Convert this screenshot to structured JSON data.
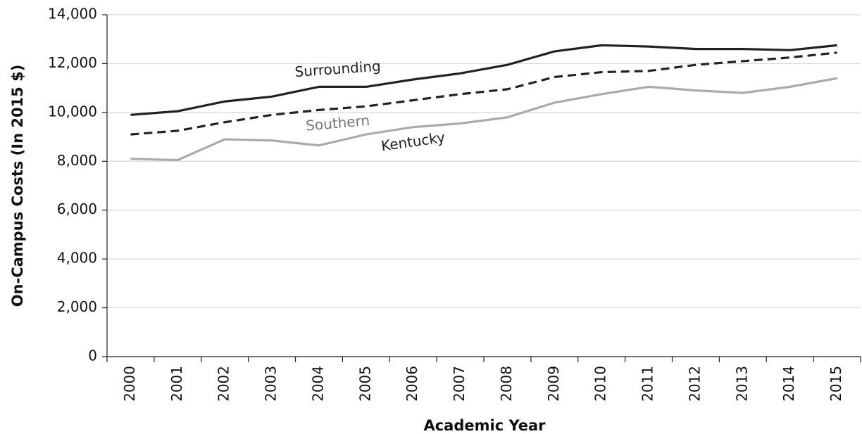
{
  "chart_data": {
    "type": "line",
    "x_label": "Academic Year",
    "y_label": "On-Campus Costs (In 2015 $)",
    "categories": [
      "2000",
      "2001",
      "2002",
      "2003",
      "2004",
      "2005",
      "2006",
      "2007",
      "2008",
      "2009",
      "2010",
      "2011",
      "2012",
      "2013",
      "2014",
      "2015"
    ],
    "series": [
      {
        "name": "Surrounding",
        "color": "#222222",
        "label_color": "#222222",
        "dash": false,
        "values": [
          9900,
          10050,
          10450,
          10650,
          11050,
          11050,
          11350,
          11600,
          11950,
          12500,
          12750,
          12700,
          12600,
          12600,
          12550,
          12750
        ]
      },
      {
        "name": "Southern",
        "color": "#222222",
        "label_color": "#777777",
        "dash": true,
        "values": [
          9100,
          9250,
          9600,
          9900,
          10100,
          10250,
          10500,
          10750,
          10950,
          11450,
          11650,
          11700,
          11950,
          12100,
          12250,
          12450
        ]
      },
      {
        "name": "Kentucky",
        "color": "#aaaaaa",
        "label_color": "#222222",
        "dash": false,
        "values": [
          8100,
          8050,
          8900,
          8850,
          8650,
          9100,
          9400,
          9550,
          9800,
          10400,
          10750,
          11050,
          10900,
          10800,
          11050,
          11400
        ]
      }
    ],
    "ylim": [
      0,
      14000
    ],
    "yticks": [
      0,
      {
        "value": 2000,
        "label": "2,000"
      },
      {
        "value": 4000,
        "label": "4,000"
      },
      {
        "value": 6000,
        "label": "6,000"
      },
      {
        "value": 8000,
        "label": "8,000"
      },
      {
        "value": 10000,
        "label": "10,000"
      },
      {
        "value": 12000,
        "label": "12,000"
      },
      {
        "value": 14000,
        "label": "14,000"
      }
    ],
    "grid": true
  }
}
